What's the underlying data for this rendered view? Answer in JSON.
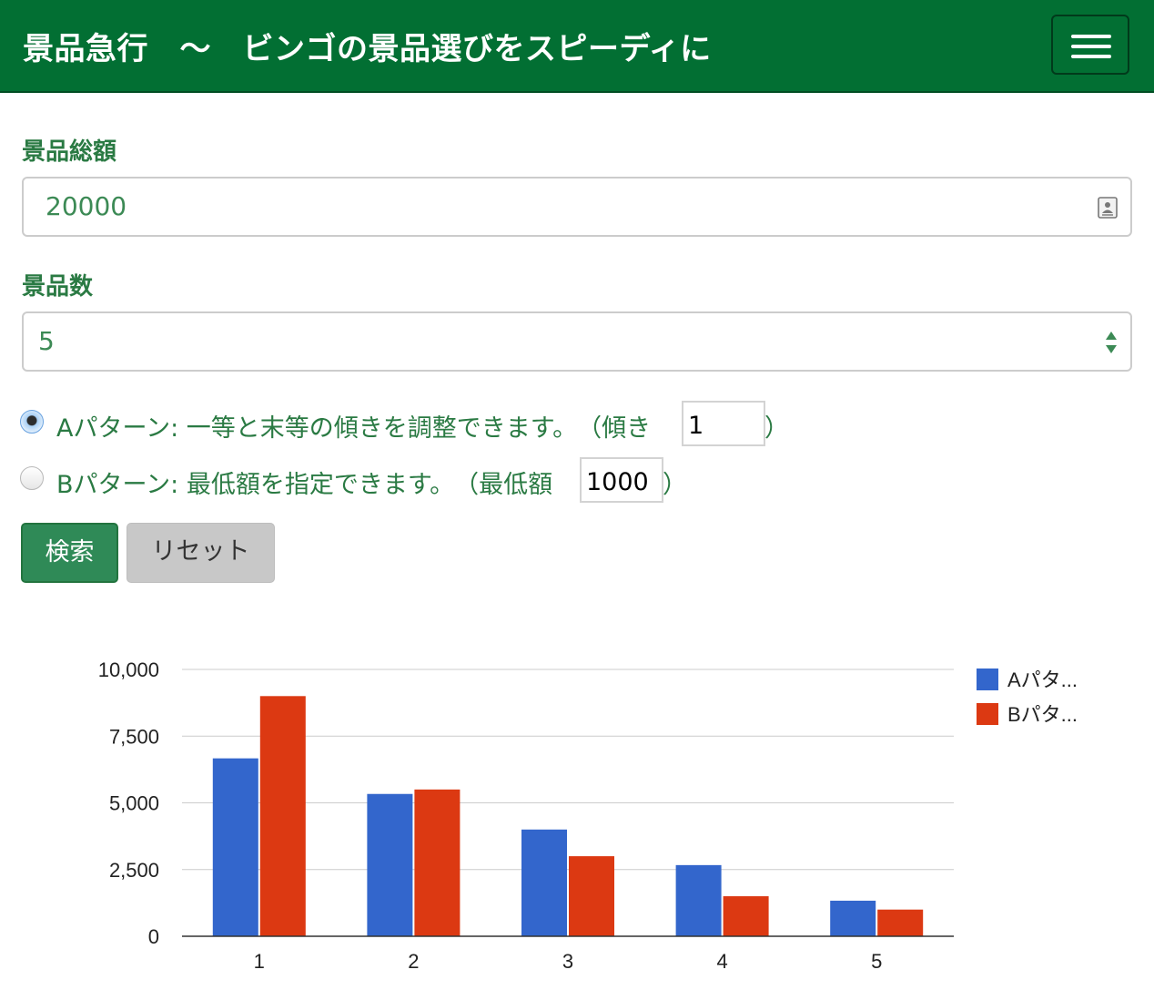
{
  "navbar": {
    "title": "景品急行　～　ビンゴの景品選びをスピーディに"
  },
  "form": {
    "total_label": "景品総額",
    "total_value": "20000",
    "count_label": "景品数",
    "count_value": "5",
    "pattern_a": {
      "label": "Aパターン: 一等と末等の傾きを調整できます。　（傾き",
      "input_value": "1",
      "close_paren": "）",
      "selected": true
    },
    "pattern_b": {
      "label": "Bパターン: 最低額を指定できます。　（最低額",
      "input_value": "1000",
      "close_paren": "）",
      "selected": false
    },
    "search_button": "検索",
    "reset_button": "リセット"
  },
  "colors": {
    "navbar": "#026f33",
    "label_green": "#2a7a43",
    "series_a": "#3366cc",
    "series_b": "#dc3912"
  },
  "chart_data": {
    "type": "bar",
    "categories": [
      "1",
      "2",
      "3",
      "4",
      "5"
    ],
    "series": [
      {
        "name": "Aパタ...",
        "color": "#3366cc",
        "values": [
          6667,
          5333,
          4000,
          2667,
          1333
        ]
      },
      {
        "name": "Bパタ...",
        "color": "#dc3912",
        "values": [
          9000,
          5500,
          3000,
          1500,
          1000
        ]
      }
    ],
    "y_ticks": [
      "0",
      "2,500",
      "5,000",
      "7,500",
      "10,000"
    ],
    "ylim": [
      0,
      10000
    ],
    "grid": true,
    "legend_position": "right"
  }
}
